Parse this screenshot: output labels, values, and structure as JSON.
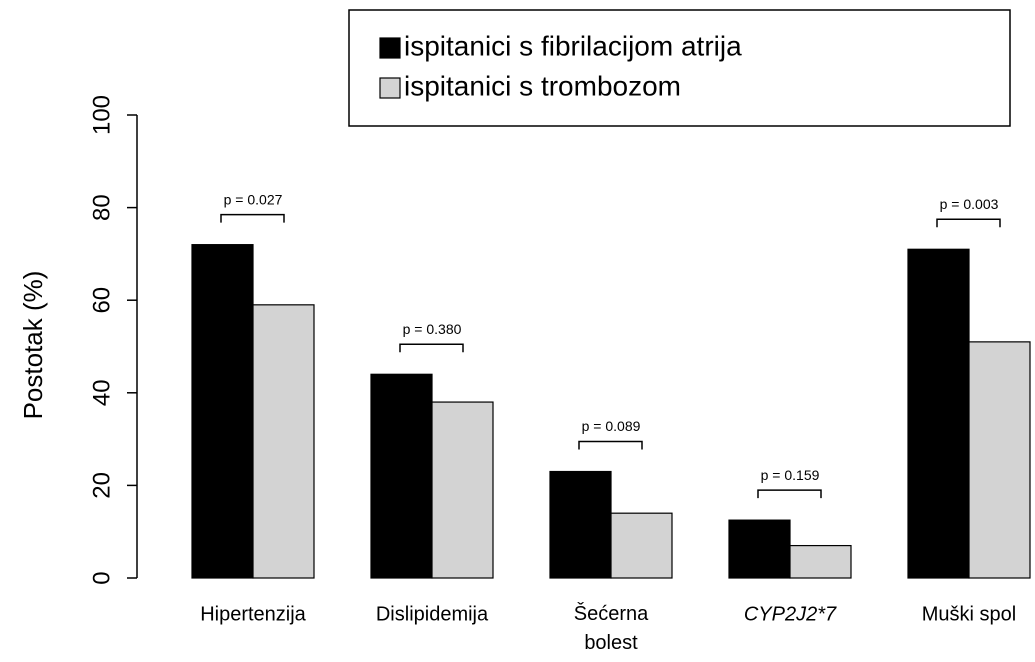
{
  "chart_data": {
    "type": "bar",
    "ylabel": "Postotak (%)",
    "categories": [
      "Hipertenzija",
      "Dislipidemija",
      "Šećerna bolest",
      "CYP2J2*7",
      "Muški spol"
    ],
    "category_italic": [
      false,
      false,
      false,
      true,
      false
    ],
    "series": [
      {
        "name": "ispitanici s fibrilacijom atrija",
        "color": "#000000",
        "values": [
          72,
          44,
          23,
          12.5,
          71
        ]
      },
      {
        "name": "ispitanici s trombozom",
        "color": "#d3d3d3",
        "values": [
          59,
          38,
          14,
          7,
          51
        ]
      }
    ],
    "annotations": [
      "p = 0.027",
      "p = 0.380",
      "p = 0.089",
      "p = 0.159",
      "p = 0.003"
    ],
    "ylim": [
      0,
      100
    ],
    "yticks": [
      0,
      20,
      40,
      60,
      80,
      100
    ],
    "legend": "top"
  }
}
